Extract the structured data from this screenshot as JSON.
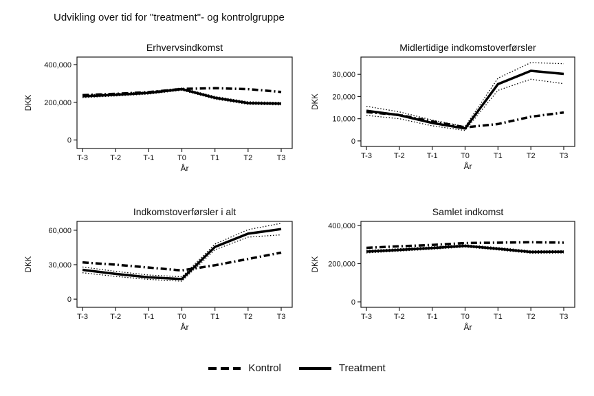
{
  "figure": {
    "title": "Udvikling over tid for \"treatment\"- og kontrolgruppe",
    "background_color": "#ffffff",
    "line_color": "#000000"
  },
  "legend": {
    "items": [
      {
        "label": "Kontrol",
        "style": "dashed"
      },
      {
        "label": "Treatment",
        "style": "solid"
      }
    ],
    "position": "bottom"
  },
  "chart_data": [
    {
      "type": "line",
      "title": "Erhvervsindkomst",
      "xlabel": "År",
      "ylabel": "DKK",
      "categories": [
        "T-3",
        "T-2",
        "T-1",
        "T0",
        "T1",
        "T2",
        "T3"
      ],
      "yticks": [
        {
          "value": 0,
          "label": "0"
        },
        {
          "value": 200000,
          "label": "200,000"
        },
        {
          "value": 400000,
          "label": "400,000"
        }
      ],
      "ylim": [
        -45000,
        440000
      ],
      "grid": false,
      "series": [
        {
          "name": "Kontrol",
          "style": "dashed",
          "values": [
            238000,
            245000,
            254000,
            271000,
            275000,
            270000,
            255000
          ]
        },
        {
          "name": "Treatment CI upper",
          "style": "dotted",
          "values": [
            239000,
            246500,
            256500,
            276000,
            231000,
            203000,
            200000
          ]
        },
        {
          "name": "Treatment CI lower",
          "style": "dotted",
          "values": [
            225000,
            233500,
            243500,
            264000,
            217000,
            189000,
            186000
          ]
        },
        {
          "name": "Treatment",
          "style": "solid",
          "values": [
            232000,
            240000,
            250000,
            270000,
            224000,
            196000,
            193000
          ]
        }
      ]
    },
    {
      "type": "line",
      "title": "Midlertidige indkomstoverførsler",
      "xlabel": "År",
      "ylabel": "DKK",
      "categories": [
        "T-3",
        "T-2",
        "T-1",
        "T0",
        "T1",
        "T2",
        "T3"
      ],
      "yticks": [
        {
          "value": 0,
          "label": "0"
        },
        {
          "value": 10000,
          "label": "10,000"
        },
        {
          "value": 20000,
          "label": "20,000"
        },
        {
          "value": 30000,
          "label": "30,000"
        }
      ],
      "ylim": [
        -2500,
        37800
      ],
      "grid": false,
      "series": [
        {
          "name": "Kontrol",
          "style": "dashed",
          "values": [
            13000,
            11700,
            8800,
            6100,
            7600,
            10900,
            12800
          ]
        },
        {
          "name": "Treatment CI upper",
          "style": "dotted",
          "values": [
            15600,
            13100,
            9400,
            6500,
            28300,
            35300,
            34800
          ]
        },
        {
          "name": "Treatment CI lower",
          "style": "dotted",
          "values": [
            11500,
            10000,
            6800,
            4700,
            22800,
            27800,
            25800
          ]
        },
        {
          "name": "Treatment",
          "style": "solid",
          "values": [
            13600,
            11600,
            8100,
            5600,
            25600,
            31600,
            30200
          ]
        }
      ]
    },
    {
      "type": "line",
      "title": "Indkomstoverførsler i alt",
      "xlabel": "År",
      "ylabel": "DKK",
      "categories": [
        "T-3",
        "T-2",
        "T-1",
        "T0",
        "T1",
        "T2",
        "T3"
      ],
      "yticks": [
        {
          "value": 0,
          "label": "0"
        },
        {
          "value": 30000,
          "label": "30,000"
        },
        {
          "value": 60000,
          "label": "60,000"
        }
      ],
      "ylim": [
        -7100,
        67700
      ],
      "grid": false,
      "series": [
        {
          "name": "Kontrol",
          "style": "dashed",
          "values": [
            32000,
            30000,
            27500,
            25000,
            29500,
            35000,
            40500
          ]
        },
        {
          "name": "Treatment CI upper",
          "style": "dotted",
          "values": [
            28000,
            24200,
            21000,
            19500,
            48000,
            60500,
            66000
          ]
        },
        {
          "name": "Treatment CI lower",
          "style": "dotted",
          "values": [
            23000,
            19800,
            17200,
            15600,
            43000,
            54000,
            56000
          ]
        },
        {
          "name": "Treatment",
          "style": "solid",
          "values": [
            25500,
            22000,
            19000,
            17500,
            45500,
            57000,
            61000
          ]
        }
      ]
    },
    {
      "type": "line",
      "title": "Samlet indkomst",
      "xlabel": "År",
      "ylabel": "DKK",
      "categories": [
        "T-3",
        "T-2",
        "T-1",
        "T0",
        "T1",
        "T2",
        "T3"
      ],
      "yticks": [
        {
          "value": 0,
          "label": "0"
        },
        {
          "value": 200000,
          "label": "200,000"
        },
        {
          "value": 400000,
          "label": "400,000"
        }
      ],
      "ylim": [
        -28600,
        421400
      ],
      "grid": false,
      "series": [
        {
          "name": "Kontrol",
          "style": "dashed",
          "values": [
            283000,
            291000,
            298000,
            308000,
            310000,
            312000,
            310000
          ]
        },
        {
          "name": "Treatment CI upper",
          "style": "dotted",
          "values": [
            270000,
            278500,
            288500,
            299000,
            284500,
            267500,
            268500
          ]
        },
        {
          "name": "Treatment CI lower",
          "style": "dotted",
          "values": [
            256000,
            265500,
            275500,
            287000,
            271500,
            254500,
            255500
          ]
        },
        {
          "name": "Treatment",
          "style": "solid",
          "values": [
            263000,
            272000,
            282000,
            293000,
            278000,
            261000,
            262000
          ]
        }
      ]
    }
  ]
}
